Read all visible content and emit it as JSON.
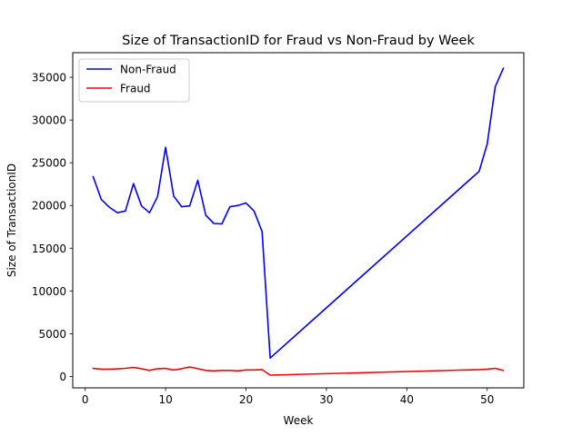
{
  "chart_data": {
    "type": "line",
    "title": "Size of TransactionID for Fraud vs Non-Fraud by Week",
    "xlabel": "Week",
    "ylabel": "Size of TransactionID",
    "xlim": [
      -1.55,
      54.55
    ],
    "ylim": [
      -1340,
      37880
    ],
    "xticks": [
      0,
      10,
      20,
      30,
      40,
      50
    ],
    "yticks": [
      0,
      5000,
      10000,
      15000,
      20000,
      25000,
      30000,
      35000
    ],
    "grid": false,
    "legend_position": "top-left",
    "series": [
      {
        "name": "Non-Fraud",
        "color": "#0000ff",
        "x": [
          1,
          2,
          3,
          4,
          5,
          6,
          7,
          8,
          9,
          10,
          11,
          12,
          13,
          14,
          15,
          16,
          17,
          18,
          19,
          20,
          21,
          22,
          23,
          49,
          50,
          51,
          52
        ],
        "y": [
          23350,
          20700,
          19800,
          19150,
          19350,
          22550,
          19950,
          19150,
          21050,
          26800,
          21100,
          19850,
          19950,
          22950,
          18850,
          17900,
          17850,
          19850,
          20000,
          20300,
          19350,
          16950,
          2150,
          24000,
          27200,
          33900,
          36050
        ]
      },
      {
        "name": "Fraud",
        "color": "#ff0000",
        "x": [
          1,
          2,
          3,
          4,
          5,
          6,
          7,
          8,
          9,
          10,
          11,
          12,
          13,
          14,
          15,
          16,
          17,
          18,
          19,
          20,
          21,
          22,
          23,
          49,
          50,
          51,
          52
        ],
        "y": [
          950,
          850,
          850,
          880,
          950,
          1050,
          900,
          700,
          900,
          930,
          750,
          900,
          1100,
          900,
          700,
          650,
          700,
          700,
          650,
          750,
          750,
          800,
          150,
          800,
          850,
          950,
          700
        ]
      }
    ]
  }
}
